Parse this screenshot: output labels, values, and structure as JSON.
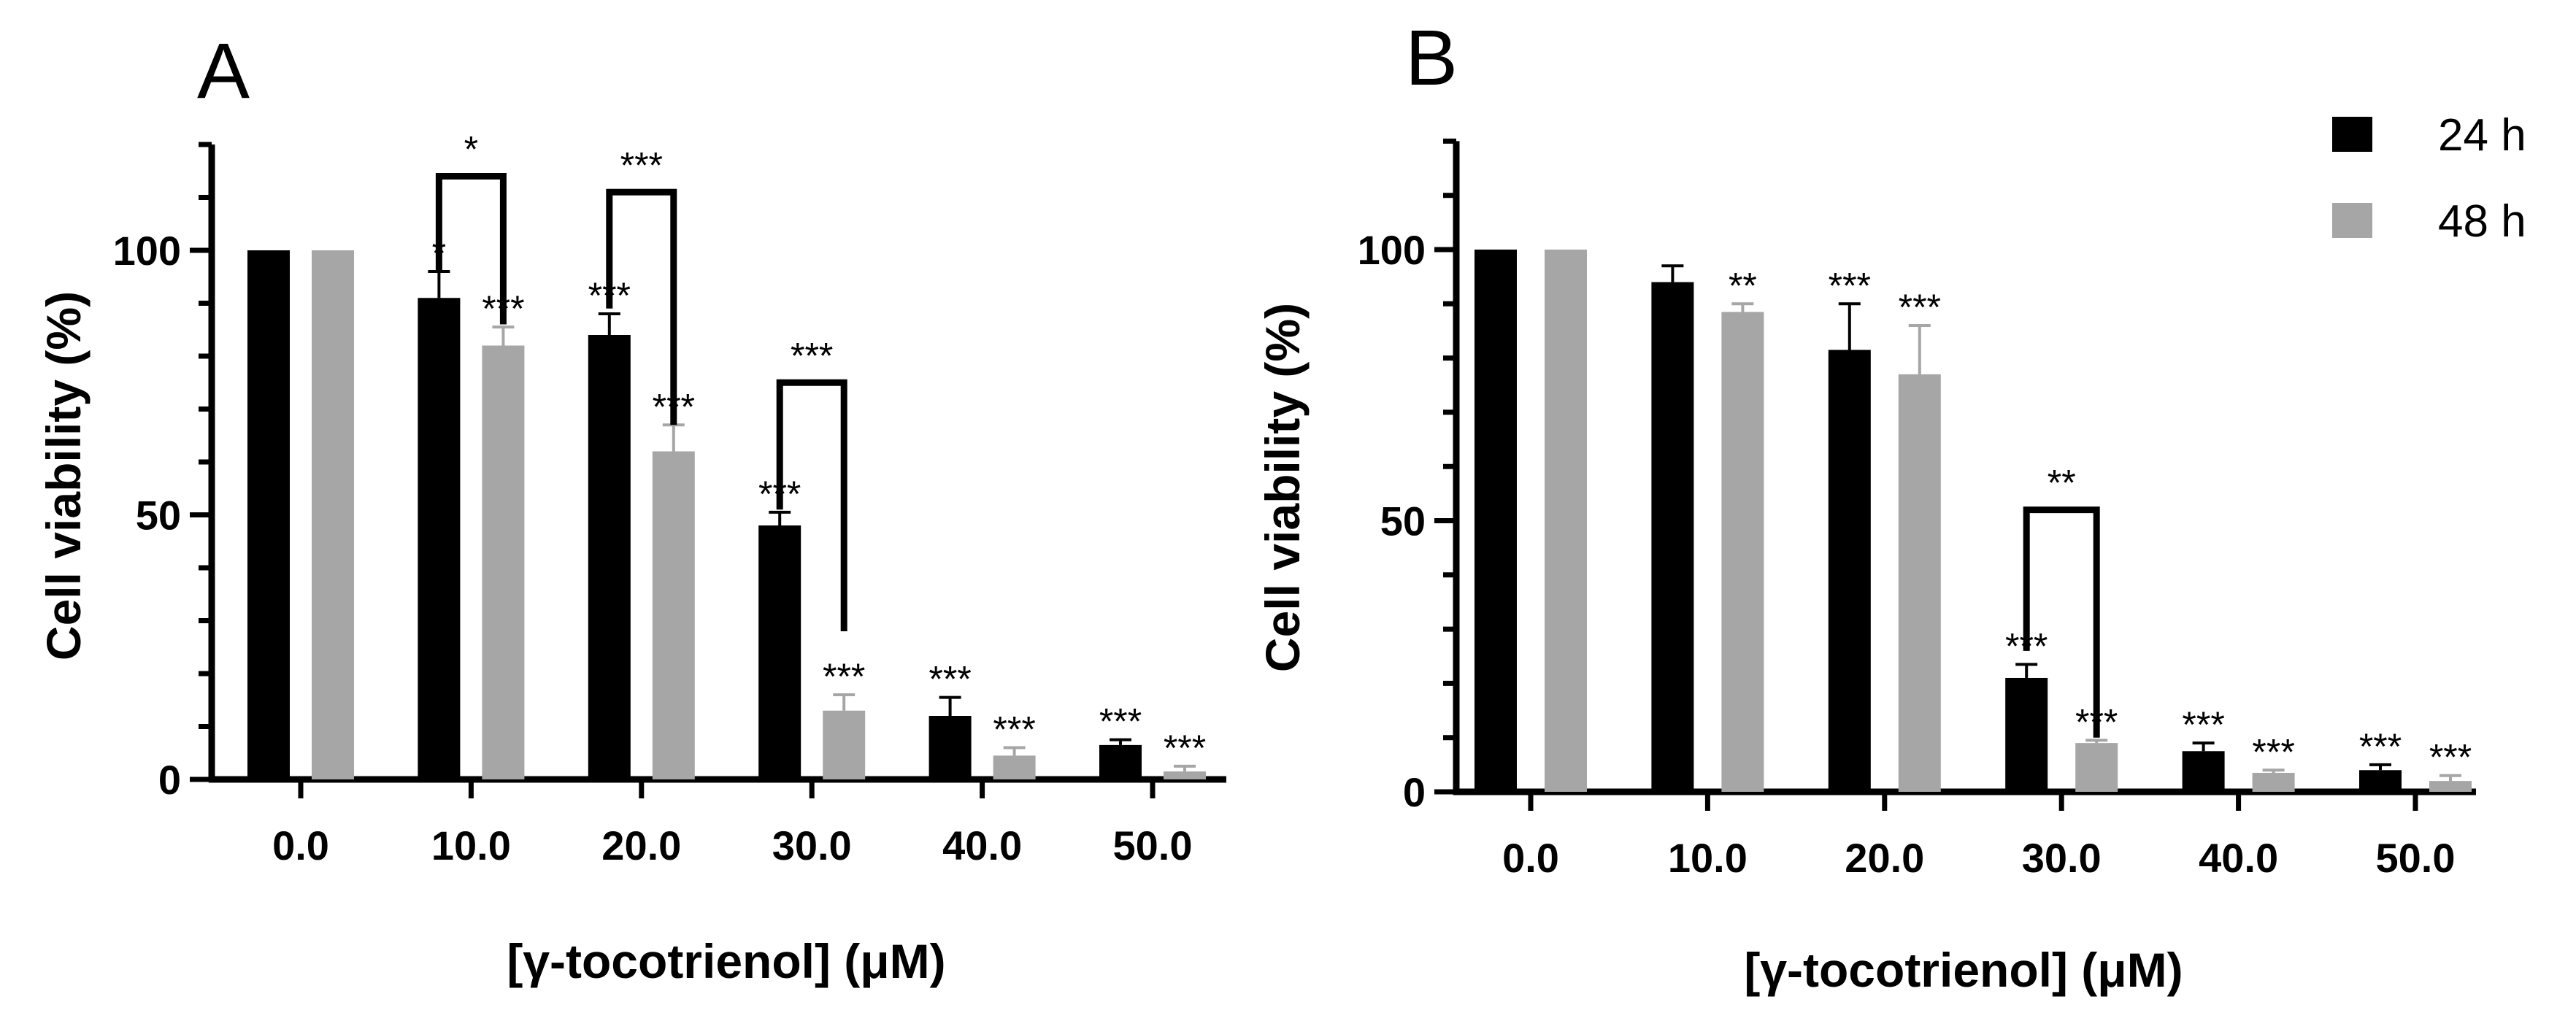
{
  "colors": {
    "h24": "#000000",
    "h48": "#a6a6a6",
    "axis": "#000000"
  },
  "legend": [
    {
      "label": "24 h",
      "color": "#000000"
    },
    {
      "label": "48 h",
      "color": "#a6a6a6"
    }
  ],
  "chart_data": [
    {
      "type": "bar",
      "panel": "A",
      "title": "",
      "xlabel": "[γ-tocotrienol] (μM)",
      "ylabel": "Cell viability (%)",
      "ylim": [
        0,
        120
      ],
      "yticks": [
        0,
        50,
        100
      ],
      "ytick_labels": [
        "0",
        "50",
        "100"
      ],
      "categories": [
        "0.0",
        "10.0",
        "20.0",
        "30.0",
        "40.0",
        "50.0"
      ],
      "series": [
        {
          "name": "24 h",
          "values": [
            100,
            91,
            84,
            48,
            12,
            6.5
          ],
          "errors": [
            0,
            5,
            4,
            2.5,
            3.5,
            1
          ],
          "sig": [
            "",
            "*",
            "***",
            "***",
            "***",
            "***"
          ]
        },
        {
          "name": "48 h",
          "values": [
            100,
            82,
            62,
            13,
            4.5,
            1.5
          ],
          "errors": [
            0,
            3.5,
            5,
            3,
            1.5,
            1
          ],
          "sig": [
            "",
            "***",
            "***",
            "***",
            "***",
            "***"
          ]
        }
      ],
      "brackets": [
        {
          "category": 1,
          "label": "*",
          "y": 114,
          "left_y": 96,
          "right_y": 86
        },
        {
          "category": 2,
          "label": "***",
          "y": 111,
          "left_y": 89,
          "right_y": 67
        },
        {
          "category": 3,
          "label": "***",
          "y": 75,
          "left_y": 51,
          "right_y": 28
        }
      ]
    },
    {
      "type": "bar",
      "panel": "B",
      "title": "",
      "xlabel": "[γ-tocotrienol] (μM)",
      "ylabel": "Cell viability (%)",
      "ylim": [
        0,
        120
      ],
      "yticks": [
        0,
        50,
        100
      ],
      "ytick_labels": [
        "0",
        "50",
        "100"
      ],
      "categories": [
        "0.0",
        "10.0",
        "20.0",
        "30.0",
        "40.0",
        "50.0"
      ],
      "series": [
        {
          "name": "24 h",
          "values": [
            100,
            94,
            81.5,
            21,
            7.5,
            4
          ],
          "errors": [
            0,
            3,
            8.5,
            2.5,
            1.5,
            1
          ],
          "sig": [
            "",
            "",
            "***",
            "***",
            "***",
            "***"
          ]
        },
        {
          "name": "48 h",
          "values": [
            100,
            88.5,
            77,
            9,
            3.5,
            2
          ],
          "errors": [
            0,
            1.5,
            9,
            0.5,
            0.5,
            1
          ],
          "sig": [
            "",
            "**",
            "***",
            "***",
            "***",
            "***"
          ]
        }
      ],
      "brackets": [
        {
          "category": 3,
          "label": "**",
          "y": 52,
          "left_y": 26,
          "right_y": 10
        }
      ]
    }
  ]
}
